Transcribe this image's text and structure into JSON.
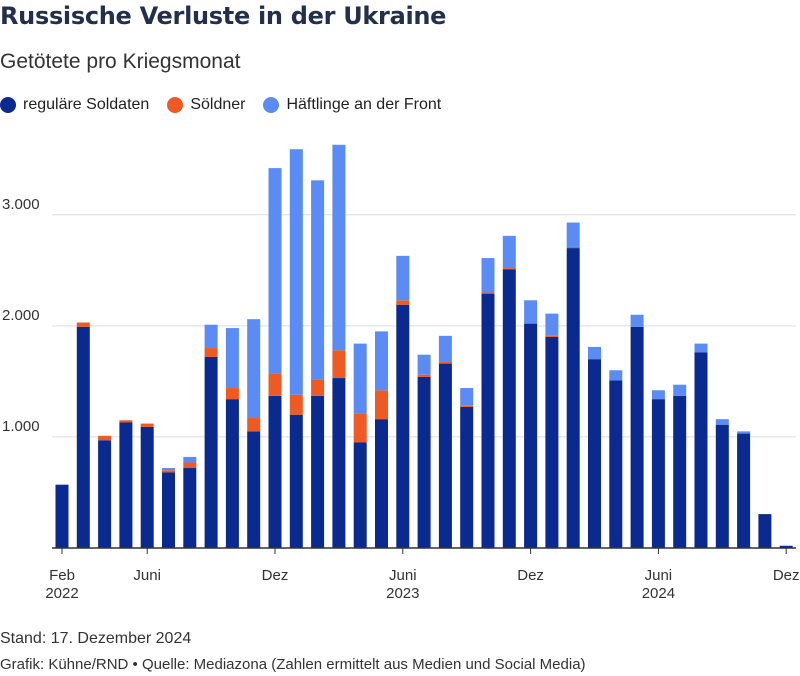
{
  "header": {
    "title": "Russische Verluste in der Ukraine",
    "subtitle": "Getötete pro Kriegsmonat"
  },
  "footer": {
    "stand": "Stand: 17. Dezember 2024",
    "credit": "Grafik: Kühne/RND • Quelle: Mediazona (Zahlen ermittelt aus Medien und Social Media)"
  },
  "colors": {
    "regular": "#0b2a8f",
    "mercenary": "#ee5a24",
    "prisoner": "#5b8cf5",
    "grid": "#dddddd",
    "axis": "#333333"
  },
  "chart_data": {
    "type": "bar",
    "stacked": true,
    "title": "Russische Verluste in der Ukraine",
    "subtitle": "Getötete pro Kriegsmonat",
    "ylim": [
      0,
      3700
    ],
    "yticks": [
      1000,
      2000,
      3000
    ],
    "ytick_labels": [
      "1.000",
      "2.000",
      "3.000"
    ],
    "grid": true,
    "legend_position": "top-left",
    "xticks": [
      {
        "index": 0,
        "label": "Feb",
        "sub": "2022"
      },
      {
        "index": 4,
        "label": "Juni",
        "sub": ""
      },
      {
        "index": 10,
        "label": "Dez",
        "sub": ""
      },
      {
        "index": 16,
        "label": "Juni",
        "sub": "2023"
      },
      {
        "index": 22,
        "label": "Dez",
        "sub": ""
      },
      {
        "index": 28,
        "label": "Juni",
        "sub": "2024"
      },
      {
        "index": 34,
        "label": "Dez",
        "sub": ""
      }
    ],
    "categories": [
      "Feb 2022",
      "Mär 2022",
      "Apr 2022",
      "Mai 2022",
      "Juni 2022",
      "Jul 2022",
      "Aug 2022",
      "Sep 2022",
      "Okt 2022",
      "Nov 2022",
      "Dez 2022",
      "Jan 2023",
      "Feb 2023",
      "Mär 2023",
      "Apr 2023",
      "Mai 2023",
      "Juni 2023",
      "Jul 2023",
      "Aug 2023",
      "Sep 2023",
      "Okt 2023",
      "Nov 2023",
      "Dez 2023",
      "Jan 2024",
      "Feb 2024",
      "Mär 2024",
      "Apr 2024",
      "Mai 2024",
      "Juni 2024",
      "Jul 2024",
      "Aug 2024",
      "Sep 2024",
      "Okt 2024",
      "Nov 2024",
      "Dez 2024"
    ],
    "series": [
      {
        "name": "reguläre Soldaten",
        "values": [
          570,
          1990,
          970,
          1130,
          1090,
          680,
          720,
          1720,
          1340,
          1050,
          1370,
          1200,
          1370,
          1530,
          950,
          1160,
          2190,
          1540,
          1660,
          1270,
          2290,
          2510,
          2020,
          1900,
          2700,
          1700,
          1510,
          1990,
          1340,
          1370,
          1760,
          1110,
          1030,
          305,
          20
        ]
      },
      {
        "name": "Söldner",
        "values": [
          0,
          40,
          40,
          20,
          30,
          20,
          50,
          80,
          100,
          120,
          200,
          180,
          150,
          250,
          260,
          260,
          40,
          20,
          20,
          10,
          10,
          10,
          0,
          10,
          10,
          0,
          0,
          0,
          0,
          0,
          0,
          0,
          0,
          0,
          0
        ]
      },
      {
        "name": "Häftlinge an der Front",
        "values": [
          0,
          0,
          0,
          0,
          0,
          20,
          50,
          210,
          540,
          890,
          1850,
          2210,
          1790,
          1850,
          630,
          530,
          400,
          180,
          230,
          160,
          310,
          290,
          210,
          200,
          220,
          110,
          90,
          110,
          80,
          100,
          80,
          50,
          20,
          0,
          0
        ]
      }
    ]
  }
}
